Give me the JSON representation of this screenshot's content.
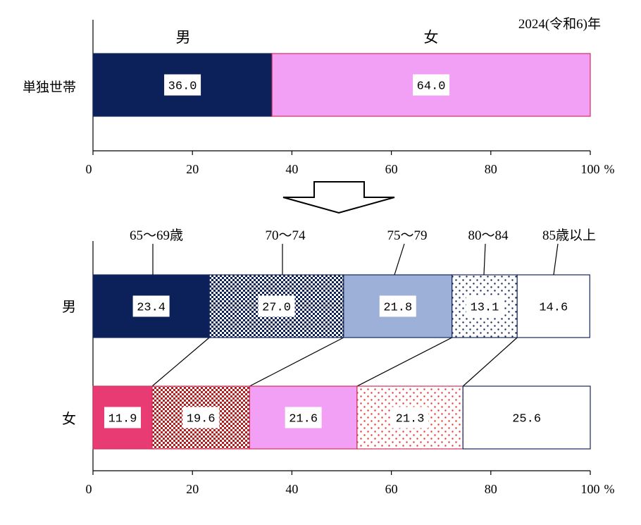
{
  "year_note": "2024(令和6)年",
  "percent_unit": "%",
  "colors": {
    "navy": "#0c2059",
    "pink_light": "#f1a0f6",
    "blue_light": "#9cb0d8",
    "magenta": "#e83b74",
    "red": "#e53935",
    "white": "#ffffff",
    "pink_border": "#d0345e",
    "navy_border": "#16285c"
  },
  "chart_data": [
    {
      "type": "bar",
      "stacked": true,
      "orientation": "horizontal",
      "categories": [
        "単独世帯"
      ],
      "series": [
        {
          "name": "男",
          "values": [
            36.0
          ],
          "style": "navy-solid"
        },
        {
          "name": "女",
          "values": [
            64.0
          ],
          "style": "pink-solid"
        }
      ],
      "xlim": [
        0,
        100
      ],
      "xticks": [
        "0",
        "20",
        "40",
        "60",
        "80",
        "100"
      ]
    },
    {
      "type": "bar",
      "stacked": true,
      "orientation": "horizontal",
      "categories": [
        "男",
        "女"
      ],
      "series": [
        {
          "name": "65〜69歳",
          "values": [
            23.4,
            11.9
          ]
        },
        {
          "name": "70〜74",
          "values": [
            27.0,
            19.6
          ]
        },
        {
          "name": "75〜79",
          "values": [
            21.8,
            21.6
          ]
        },
        {
          "name": "80〜84",
          "values": [
            13.1,
            21.3
          ]
        },
        {
          "name": "85歳以上",
          "values": [
            14.6,
            25.6
          ]
        }
      ],
      "styles": {
        "男": [
          "navy-solid",
          "navy-check",
          "blue-solid",
          "navy-dots",
          "white"
        ],
        "女": [
          "magenta-solid",
          "red-check",
          "pink-solid",
          "red-dots",
          "white"
        ]
      },
      "xlim": [
        0,
        100
      ],
      "xticks": [
        "0",
        "20",
        "40",
        "60",
        "80",
        "100"
      ]
    }
  ]
}
